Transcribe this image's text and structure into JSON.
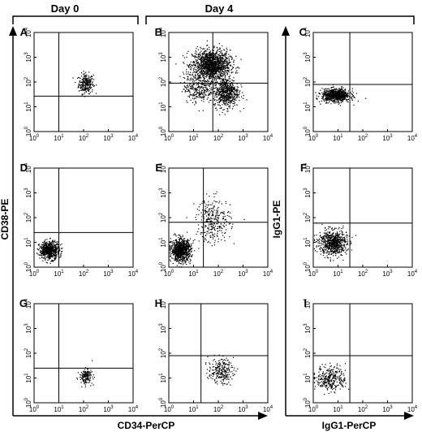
{
  "headers": {
    "day0": "Day 0",
    "day4": "Day 4"
  },
  "axis_labels": {
    "left_y": "CD38-PE",
    "bottom_x": "CD34-PerCP",
    "right_y": "IgG1-PE",
    "right_x": "IgG1-PerCP"
  },
  "tick_labels": {
    "base": "10",
    "exponents": [
      "0",
      "1",
      "2",
      "3",
      "4"
    ]
  },
  "chart_data": [
    {
      "panel": "A",
      "type": "scatter",
      "scale": "log",
      "xlim": [
        1,
        10000
      ],
      "ylim": [
        1,
        10000
      ],
      "gate": {
        "x": 10,
        "y": 27
      },
      "clusters": [
        {
          "x": 120,
          "y": 90,
          "n": 260,
          "sx": 0.15,
          "sy": 0.2
        }
      ]
    },
    {
      "panel": "B",
      "type": "scatter",
      "scale": "log",
      "xlim": [
        1,
        10000
      ],
      "ylim": [
        1,
        10000
      ],
      "gate": {
        "x": 60,
        "y": 90
      },
      "clusters": [
        {
          "x": 50,
          "y": 500,
          "n": 1400,
          "sx": 0.38,
          "sy": 0.3
        },
        {
          "x": 200,
          "y": 40,
          "n": 600,
          "sx": 0.25,
          "sy": 0.3
        },
        {
          "x": 15,
          "y": 60,
          "n": 300,
          "sx": 0.3,
          "sy": 0.3
        }
      ]
    },
    {
      "panel": "C",
      "type": "scatter",
      "scale": "log",
      "xlim": [
        1,
        10000
      ],
      "ylim": [
        1,
        10000
      ],
      "gate": {
        "x": 30,
        "y": 80
      },
      "clusters": [
        {
          "x": 8,
          "y": 30,
          "n": 800,
          "sx": 0.28,
          "sy": 0.13
        }
      ]
    },
    {
      "panel": "D",
      "type": "scatter",
      "scale": "log",
      "xlim": [
        1,
        10000
      ],
      "ylim": [
        1,
        10000
      ],
      "gate": {
        "x": 10,
        "y": 25
      },
      "clusters": [
        {
          "x": 4,
          "y": 5,
          "n": 600,
          "sx": 0.2,
          "sy": 0.18
        }
      ]
    },
    {
      "panel": "E",
      "type": "scatter",
      "scale": "log",
      "xlim": [
        1,
        10000
      ],
      "ylim": [
        1,
        10000
      ],
      "gate": {
        "x": 25,
        "y": 65
      },
      "clusters": [
        {
          "x": 3,
          "y": 5,
          "n": 900,
          "sx": 0.2,
          "sy": 0.22
        },
        {
          "x": 60,
          "y": 80,
          "n": 300,
          "sx": 0.35,
          "sy": 0.45
        }
      ]
    },
    {
      "panel": "F",
      "type": "scatter",
      "scale": "log",
      "xlim": [
        1,
        10000
      ],
      "ylim": [
        1,
        10000
      ],
      "gate": {
        "x": 30,
        "y": 60
      },
      "clusters": [
        {
          "x": 6,
          "y": 10,
          "n": 700,
          "sx": 0.28,
          "sy": 0.25
        }
      ]
    },
    {
      "panel": "G",
      "type": "scatter",
      "scale": "log",
      "xlim": [
        1,
        10000
      ],
      "ylim": [
        1,
        10000
      ],
      "gate": {
        "x": 10,
        "y": 25
      },
      "clusters": [
        {
          "x": 120,
          "y": 12,
          "n": 160,
          "sx": 0.13,
          "sy": 0.15
        }
      ]
    },
    {
      "panel": "H",
      "type": "scatter",
      "scale": "log",
      "xlim": [
        1,
        10000
      ],
      "ylim": [
        1,
        10000
      ],
      "gate": {
        "x": 20,
        "y": 80
      },
      "clusters": [
        {
          "x": 120,
          "y": 20,
          "n": 240,
          "sx": 0.25,
          "sy": 0.25
        }
      ]
    },
    {
      "panel": "I",
      "type": "scatter",
      "scale": "log",
      "xlim": [
        1,
        10000
      ],
      "ylim": [
        1,
        10000
      ],
      "gate": {
        "x": 30,
        "y": 80
      },
      "clusters": [
        {
          "x": 5,
          "y": 10,
          "n": 320,
          "sx": 0.3,
          "sy": 0.25
        }
      ]
    }
  ]
}
